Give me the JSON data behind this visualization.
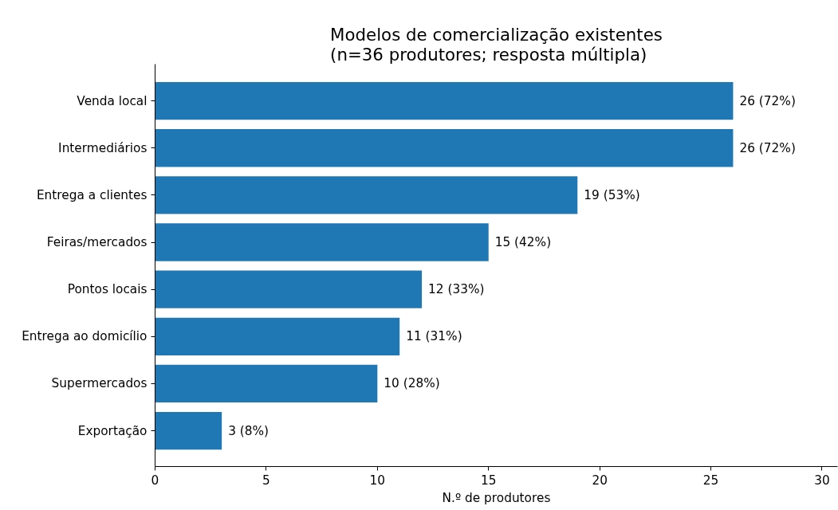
{
  "chart_data": {
    "type": "bar",
    "orientation": "horizontal",
    "title": "Modelos de comercialização existentes\n(n=36 produtores; resposta múltipla)",
    "xlabel": "N.º de produtores",
    "categories": [
      "Venda local",
      "Intermediários",
      "Entrega a clientes",
      "Feiras/mercados",
      "Pontos locais",
      "Entrega ao domicílio",
      "Supermercados",
      "Exportação"
    ],
    "values": [
      26,
      26,
      19,
      15,
      12,
      11,
      10,
      3
    ],
    "value_labels": [
      "26 (72%)",
      "26 (72%)",
      "19 (53%)",
      "15 (42%)",
      "12 (33%)",
      "11 (31%)",
      "10 (28%)",
      "3 (8%)"
    ],
    "color": "#1f77b4",
    "xlim": [
      0,
      30.7
    ],
    "xticks": [
      0,
      5,
      10,
      15,
      20,
      25,
      30
    ],
    "grid": false
  }
}
